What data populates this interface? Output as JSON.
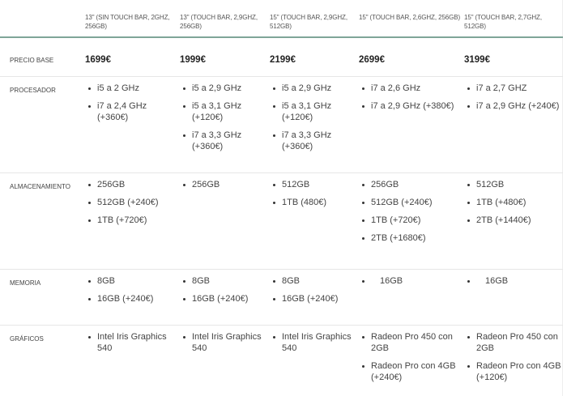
{
  "columns": [
    "13\" (SIN TOUCH BAR, 2GHZ, 256GB)",
    "13\" (TOUCH BAR, 2,9GHZ, 256GB)",
    "15\" (TOUCH BAR, 2,9GHZ, 512GB)",
    "15\" (TOUCH BAR, 2,6GHZ, 256GB)",
    "15\" (TOUCH BAR, 2,7GHZ, 512GB)"
  ],
  "price_row": {
    "label": "PRECIO BASE",
    "values": [
      "1699€",
      "1999€",
      "2199€",
      "2699€",
      "3199€"
    ]
  },
  "rows": [
    {
      "label": "PROCESADOR",
      "cells": [
        [
          "i5 a 2 GHz",
          "i7 a 2,4 GHz (+360€)"
        ],
        [
          "i5 a 2,9 GHz",
          "i5 a 3,1 GHz (+120€)",
          "i7 a 3,3 GHz (+360€)"
        ],
        [
          "i5 a 2,9 GHz",
          "i5 a 3,1 GHz (+120€)",
          "i7 a 3,3 GHz (+360€)"
        ],
        [
          "i7 a 2,6 GHz",
          "i7 a 2,9 GHz (+380€)"
        ],
        [
          "i7 a 2,7 GHZ",
          "i7 a 2,9 GHz (+240€)"
        ]
      ]
    },
    {
      "label": "ALMACENAMIENTO",
      "cells": [
        [
          "256GB",
          "512GB (+240€)",
          "1TB (+720€)"
        ],
        [
          "256GB"
        ],
        [
          "512GB",
          "1TB (480€)"
        ],
        [
          "256GB",
          "512GB (+240€)",
          "1TB (+720€)",
          "2TB (+1680€)"
        ],
        [
          "512GB",
          "1TB (+480€)",
          "2TB (+1440€)"
        ]
      ]
    },
    {
      "label": "MEMORIA",
      "cells": [
        [
          "8GB",
          "16GB (+240€)"
        ],
        [
          "8GB",
          "16GB (+240€)"
        ],
        [
          "8GB",
          "16GB (+240€)"
        ],
        [
          "16GB"
        ],
        [
          "16GB"
        ]
      ]
    },
    {
      "label": "GRÁFICOS",
      "cells": [
        [
          "Intel Iris Graphics 540"
        ],
        [
          "Intel Iris Graphics 540"
        ],
        [
          "Intel Iris Graphics 540"
        ],
        [
          "Radeon Pro 450 con 2GB",
          "Radeon Pro con 4GB (+240€)"
        ],
        [
          "Radeon Pro 450 con 2GB",
          "Radeon Pro con 4GB (+120€)"
        ]
      ]
    }
  ]
}
